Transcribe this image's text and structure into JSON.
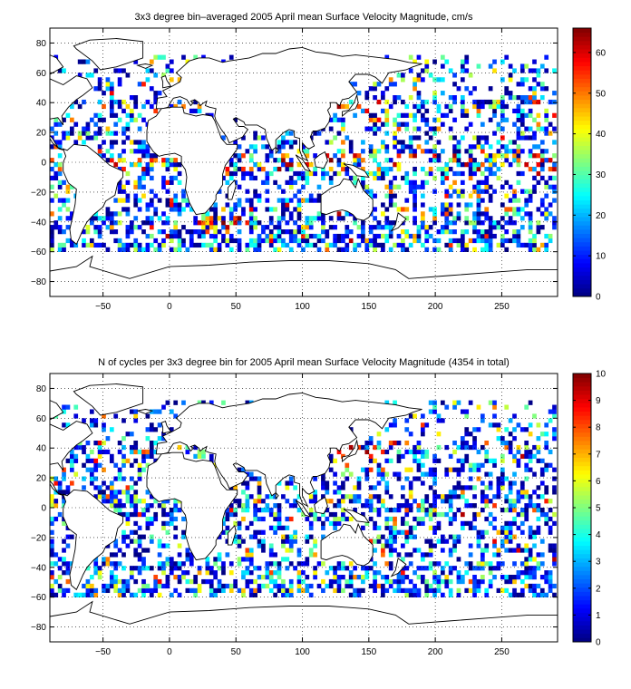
{
  "chart_data": [
    {
      "type": "heatmap",
      "title": "3x3 degree bin–averaged 2005 April mean Surface Velocity Magnitude, cm/s",
      "xlabel": "",
      "ylabel": "",
      "xlim": [
        -90,
        292
      ],
      "ylim": [
        -90,
        90
      ],
      "x_ticks": [
        -50,
        0,
        50,
        100,
        150,
        200,
        250
      ],
      "y_ticks": [
        80,
        60,
        40,
        20,
        0,
        -20,
        -40,
        -60,
        -80
      ],
      "grid": true,
      "bin_size_deg": 3,
      "colorbar": {
        "range": [
          0,
          66
        ],
        "ticks": [
          0,
          10,
          20,
          30,
          40,
          50,
          60
        ],
        "colormap": "jet",
        "placement": "right"
      },
      "seed": 7
    },
    {
      "type": "heatmap",
      "title": "N of cycles per 3x3 degree bin for 2005 April mean Surface Velocity Magnitude (4354 in total)",
      "xlabel": "",
      "ylabel": "",
      "xlim": [
        -90,
        292
      ],
      "ylim": [
        -90,
        90
      ],
      "x_ticks": [
        -50,
        0,
        50,
        100,
        150,
        200,
        250
      ],
      "y_ticks": [
        80,
        60,
        40,
        20,
        0,
        -20,
        -40,
        -60,
        -80
      ],
      "grid": true,
      "bin_size_deg": 3,
      "colorbar": {
        "range": [
          0,
          10
        ],
        "ticks": [
          0,
          1,
          2,
          3,
          4,
          5,
          6,
          7,
          8,
          9,
          10
        ],
        "colormap": "jet",
        "placement": "right"
      },
      "seed": 19
    }
  ]
}
